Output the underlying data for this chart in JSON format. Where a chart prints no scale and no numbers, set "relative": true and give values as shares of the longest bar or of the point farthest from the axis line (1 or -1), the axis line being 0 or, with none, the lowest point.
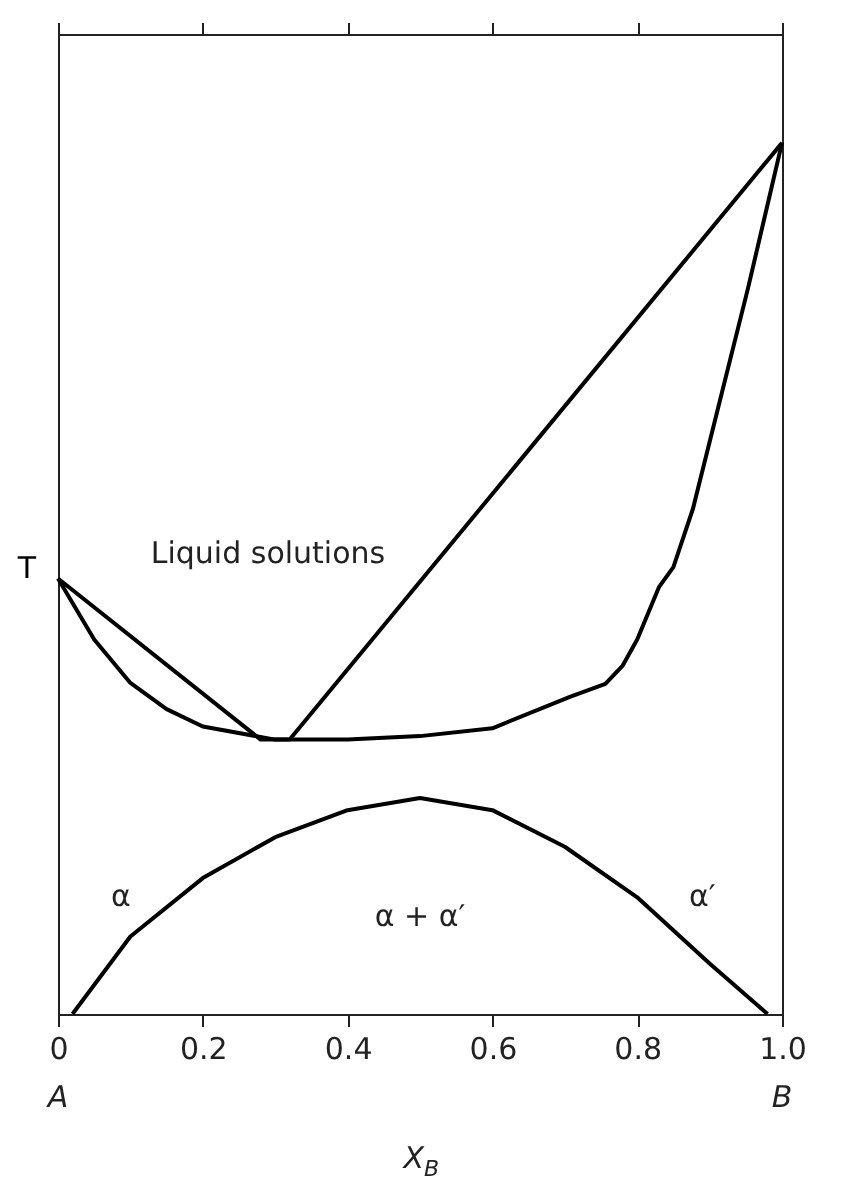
{
  "chart_data": {
    "type": "line",
    "relative": true,
    "xlabel": "X$_{B}$",
    "ylabel": "T",
    "xlim": [
      0,
      1
    ],
    "xticks": [
      0,
      0.2,
      0.4,
      0.6,
      0.8,
      {
        "value": 1,
        "label": "1.0"
      }
    ],
    "series": [
      {
        "color": "#000000",
        "x": [
          0,
          0.28,
          0.32,
          1
        ],
        "values": [
          0.5,
          0.315,
          0.315,
          1
        ]
      },
      {
        "color": "#000000",
        "x": [
          0,
          0.05,
          0.1,
          0.15,
          0.2,
          0.3,
          0.4,
          0.5,
          0.6,
          0.707,
          0.756,
          0.78,
          0.8,
          0.83,
          0.85,
          0.877,
          0.913,
          0.953,
          1
        ],
        "values": [
          0.5,
          0.43,
          0.38,
          0.35,
          0.33,
          0.315,
          0.315,
          0.319,
          0.328,
          0.364,
          0.379,
          0.4,
          0.43,
          0.49,
          0.513,
          0.58,
          0.7,
          0.833,
          1
        ]
      },
      {
        "color": "#000000",
        "x": [
          0.02,
          0.1,
          0.2,
          0.3,
          0.4,
          0.5,
          0.6,
          0.7,
          0.8,
          0.9,
          0.98
        ],
        "values": [
          0,
          0.089,
          0.156,
          0.203,
          0.234,
          0.248,
          0.234,
          0.192,
          0.134,
          0.058,
          0
        ]
      }
    ],
    "annotations": [
      "Liquid solutions",
      "α",
      "α + α′",
      "α′",
      "A",
      "B"
    ],
    "grid": false,
    "line_style": "solid",
    "marker": "none"
  }
}
